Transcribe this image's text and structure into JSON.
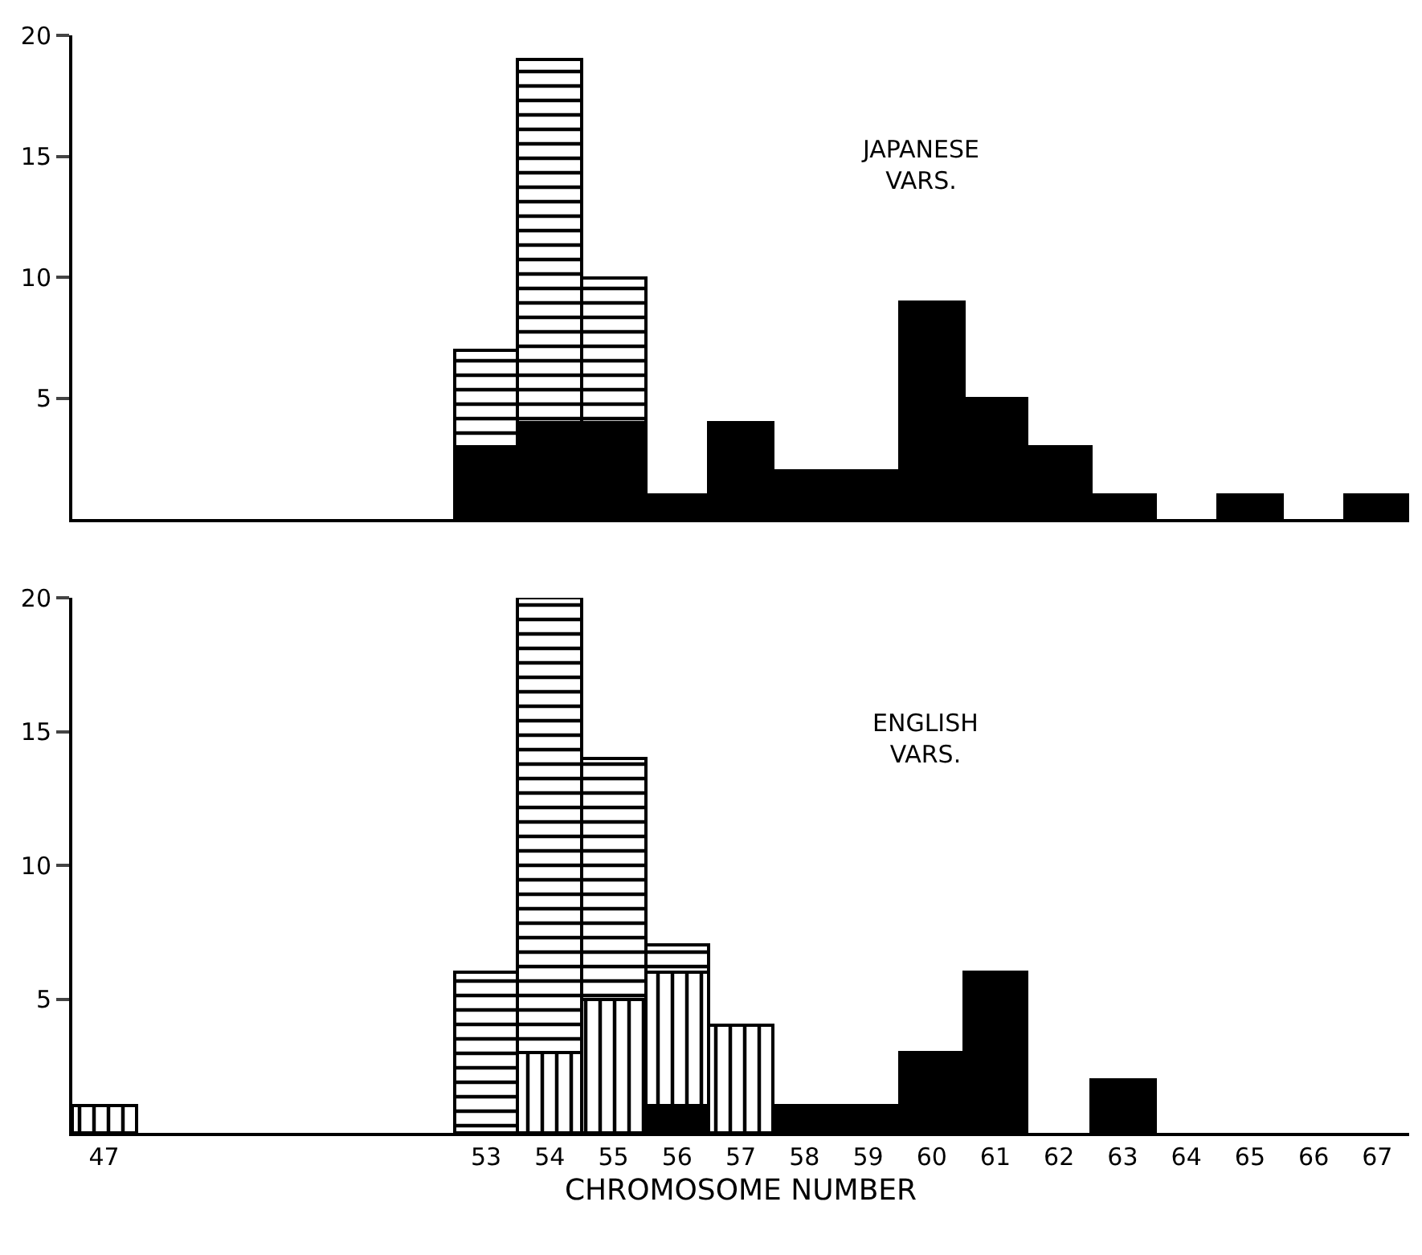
{
  "chart_data": [
    {
      "type": "bar",
      "stacked": true,
      "annotations": [
        "JAPANESE VARS."
      ],
      "x": [
        53,
        54,
        55,
        56,
        57,
        58,
        59,
        60,
        61,
        62,
        63,
        65,
        67
      ],
      "series": [
        {
          "color": "#000000",
          "values": [
            3,
            4,
            4,
            1,
            4,
            2,
            2,
            9,
            5,
            3,
            1,
            1,
            1
          ]
        },
        {
          "color": "#000000",
          "values": [
            4,
            15,
            6,
            null,
            null,
            null,
            null,
            null,
            null,
            null,
            null,
            null,
            null
          ]
        }
      ],
      "xlim": [
        46.5,
        67.5
      ],
      "xticks": [
        47,
        53,
        54,
        55,
        56,
        57,
        58,
        59,
        60,
        61,
        62,
        63,
        64,
        65,
        66,
        67
      ],
      "ylim": [
        0,
        20
      ],
      "yticks": [
        5,
        10,
        15,
        20
      ],
      "tick_labels": "y",
      "grid": false
    },
    {
      "type": "bar",
      "stacked": true,
      "xlabel": "CHROMOSOME NUMBER",
      "annotations": [
        "ENGLISH VARS."
      ],
      "x": [
        47,
        53,
        54,
        55,
        56,
        57,
        58,
        59,
        60,
        61,
        63
      ],
      "series": [
        {
          "color": "#000000",
          "values": [
            null,
            null,
            null,
            null,
            1,
            null,
            1,
            1,
            3,
            6,
            2
          ]
        },
        {
          "color": "#000000",
          "values": [
            1,
            null,
            3,
            5,
            5,
            4,
            null,
            null,
            null,
            null,
            null
          ]
        },
        {
          "color": "#000000",
          "values": [
            null,
            6,
            17,
            9,
            1,
            null,
            null,
            null,
            null,
            null,
            null
          ]
        }
      ],
      "xlim": [
        46.5,
        67.5
      ],
      "xticks": [
        47,
        53,
        54,
        55,
        56,
        57,
        58,
        59,
        60,
        61,
        62,
        63,
        64,
        65,
        66,
        67
      ],
      "ylim": [
        0,
        20
      ],
      "yticks": [
        5,
        10,
        15,
        20
      ],
      "grid": false
    }
  ]
}
